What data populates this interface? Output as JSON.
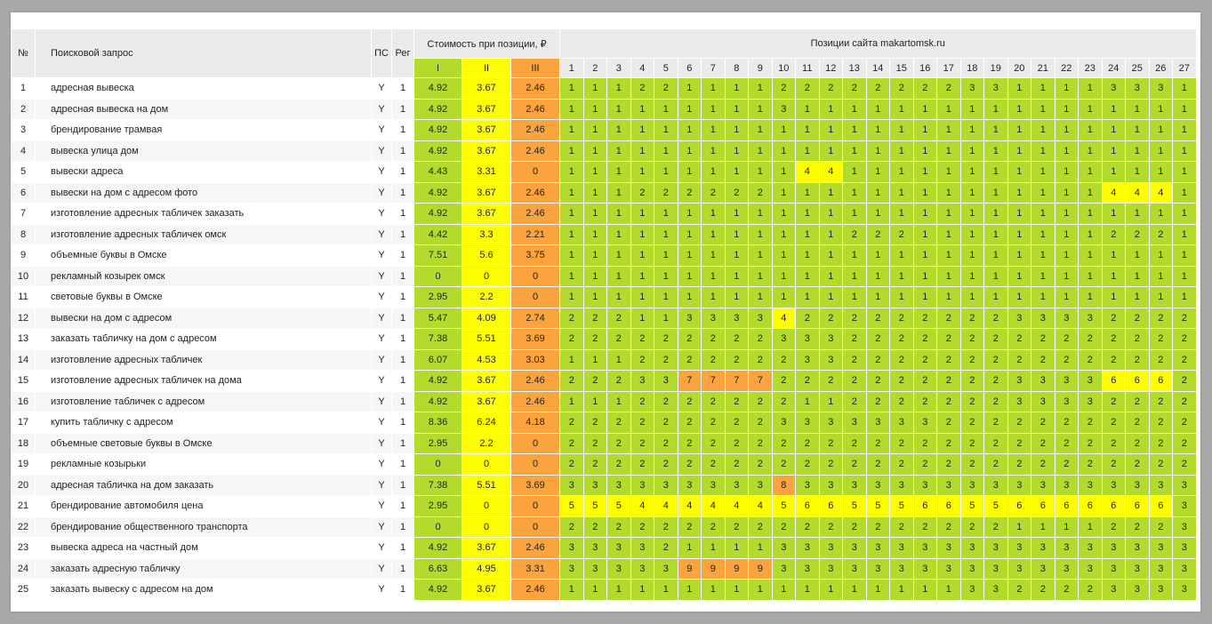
{
  "header": {
    "no": "№",
    "query": "Поисковой запрос",
    "ps": "ПС",
    "reg": "Рег",
    "cost_group": "Стоимость при позиции, ₽",
    "positions_group": "Позиции сайта makartomsk.ru",
    "tiers": [
      "I",
      "II",
      "III"
    ],
    "position_cols": [
      "1",
      "2",
      "3",
      "4",
      "5",
      "6",
      "7",
      "8",
      "9",
      "10",
      "11",
      "12",
      "13",
      "14",
      "15",
      "16",
      "17",
      "18",
      "19",
      "20",
      "21",
      "22",
      "23",
      "24",
      "25",
      "26",
      "27"
    ]
  },
  "colors": {
    "green": "#b2db2b",
    "yellow": "#fefe00",
    "orange": "#fba43d",
    "header_bg": "#ebebeb"
  },
  "rows": [
    {
      "n": "1",
      "q": "адресная вывеска",
      "ps": "Y",
      "reg": "1",
      "c": [
        "4.92",
        "3.67",
        "2.46"
      ],
      "p": [
        "1",
        "1",
        "1",
        "2",
        "2",
        "1",
        "1",
        "1",
        "1",
        "2",
        "2",
        "2",
        "2",
        "2",
        "2",
        "2",
        "2",
        "3",
        "3",
        "1",
        "1",
        "1",
        "1",
        "3",
        "3",
        "3",
        "1"
      ]
    },
    {
      "n": "2",
      "q": "адресная вывеска на дом",
      "ps": "Y",
      "reg": "1",
      "c": [
        "4.92",
        "3.67",
        "2.46"
      ],
      "p": [
        "1",
        "1",
        "1",
        "1",
        "1",
        "1",
        "1",
        "1",
        "1",
        "3",
        "1",
        "1",
        "1",
        "1",
        "1",
        "1",
        "1",
        "1",
        "1",
        "1",
        "1",
        "1",
        "1",
        "1",
        "1",
        "1",
        "1"
      ]
    },
    {
      "n": "3",
      "q": "брендирование трамвая",
      "ps": "Y",
      "reg": "1",
      "c": [
        "4.92",
        "3.67",
        "2.46"
      ],
      "p": [
        "1",
        "1",
        "1",
        "1",
        "1",
        "1",
        "1",
        "1",
        "1",
        "1",
        "1",
        "1",
        "1",
        "1",
        "1",
        "1",
        "1",
        "1",
        "1",
        "1",
        "1",
        "1",
        "1",
        "1",
        "1",
        "1",
        "1"
      ]
    },
    {
      "n": "4",
      "q": "вывеска улица дом",
      "ps": "Y",
      "reg": "1",
      "c": [
        "4.92",
        "3.67",
        "2.46"
      ],
      "p": [
        "1",
        "1",
        "1",
        "1",
        "1",
        "1",
        "1",
        "1",
        "1",
        "1",
        "1",
        "1",
        "1",
        "1",
        "1",
        "1",
        "1",
        "1",
        "1",
        "1",
        "1",
        "1",
        "1",
        "1",
        "1",
        "1",
        "1"
      ]
    },
    {
      "n": "5",
      "q": "вывески адреса",
      "ps": "Y",
      "reg": "1",
      "c": [
        "4.43",
        "3.31",
        "0"
      ],
      "p": [
        "1",
        "1",
        "1",
        "1",
        "1",
        "1",
        "1",
        "1",
        "1",
        "1",
        "4",
        "4",
        "1",
        "1",
        "1",
        "1",
        "1",
        "1",
        "1",
        "1",
        "1",
        "1",
        "1",
        "1",
        "1",
        "1",
        "1"
      ]
    },
    {
      "n": "6",
      "q": "вывески на дом с адресом фото",
      "ps": "Y",
      "reg": "1",
      "c": [
        "4.92",
        "3.67",
        "2.46"
      ],
      "p": [
        "1",
        "1",
        "1",
        "2",
        "2",
        "2",
        "2",
        "2",
        "2",
        "1",
        "1",
        "1",
        "1",
        "1",
        "1",
        "1",
        "1",
        "1",
        "1",
        "1",
        "1",
        "1",
        "1",
        "4",
        "4",
        "4",
        "1"
      ]
    },
    {
      "n": "7",
      "q": "изготовление адресных табличек заказать",
      "ps": "Y",
      "reg": "1",
      "c": [
        "4.92",
        "3.67",
        "2.46"
      ],
      "p": [
        "1",
        "1",
        "1",
        "1",
        "1",
        "1",
        "1",
        "1",
        "1",
        "1",
        "1",
        "1",
        "1",
        "1",
        "1",
        "1",
        "1",
        "1",
        "1",
        "1",
        "1",
        "1",
        "1",
        "1",
        "1",
        "1",
        "1"
      ]
    },
    {
      "n": "8",
      "q": "изготовление адресных табличек омск",
      "ps": "Y",
      "reg": "1",
      "c": [
        "4.42",
        "3.3",
        "2.21"
      ],
      "p": [
        "1",
        "1",
        "1",
        "1",
        "1",
        "1",
        "1",
        "1",
        "1",
        "1",
        "1",
        "1",
        "2",
        "2",
        "2",
        "1",
        "1",
        "1",
        "1",
        "1",
        "1",
        "1",
        "1",
        "2",
        "2",
        "2",
        "1"
      ]
    },
    {
      "n": "9",
      "q": "объемные буквы в Омске",
      "ps": "Y",
      "reg": "1",
      "c": [
        "7.51",
        "5.6",
        "3.75"
      ],
      "p": [
        "1",
        "1",
        "1",
        "1",
        "1",
        "1",
        "1",
        "1",
        "1",
        "1",
        "1",
        "1",
        "1",
        "1",
        "1",
        "1",
        "1",
        "1",
        "1",
        "1",
        "1",
        "1",
        "1",
        "1",
        "1",
        "1",
        "1"
      ]
    },
    {
      "n": "10",
      "q": "рекламный козырек омск",
      "ps": "Y",
      "reg": "1",
      "c": [
        "0",
        "0",
        "0"
      ],
      "p": [
        "1",
        "1",
        "1",
        "1",
        "1",
        "1",
        "1",
        "1",
        "1",
        "1",
        "1",
        "1",
        "1",
        "1",
        "1",
        "1",
        "1",
        "1",
        "1",
        "1",
        "1",
        "1",
        "1",
        "1",
        "1",
        "1",
        "1"
      ]
    },
    {
      "n": "11",
      "q": "световые буквы в Омске",
      "ps": "Y",
      "reg": "1",
      "c": [
        "2.95",
        "2.2",
        "0"
      ],
      "p": [
        "1",
        "1",
        "1",
        "1",
        "1",
        "1",
        "1",
        "1",
        "1",
        "1",
        "1",
        "1",
        "1",
        "1",
        "1",
        "1",
        "1",
        "1",
        "1",
        "1",
        "1",
        "1",
        "1",
        "1",
        "1",
        "1",
        "1"
      ]
    },
    {
      "n": "12",
      "q": "вывески на дом с адресом",
      "ps": "Y",
      "reg": "1",
      "c": [
        "5.47",
        "4.09",
        "2.74"
      ],
      "p": [
        "2",
        "2",
        "2",
        "1",
        "1",
        "3",
        "3",
        "3",
        "3",
        "4",
        "2",
        "2",
        "2",
        "2",
        "2",
        "2",
        "2",
        "2",
        "2",
        "3",
        "3",
        "3",
        "3",
        "2",
        "2",
        "2",
        "2"
      ]
    },
    {
      "n": "13",
      "q": "заказать табличку на дом с адресом",
      "ps": "Y",
      "reg": "1",
      "c": [
        "7.38",
        "5.51",
        "3.69"
      ],
      "p": [
        "2",
        "2",
        "2",
        "2",
        "2",
        "2",
        "2",
        "2",
        "2",
        "3",
        "3",
        "3",
        "2",
        "2",
        "2",
        "2",
        "2",
        "2",
        "2",
        "2",
        "2",
        "2",
        "2",
        "2",
        "2",
        "2",
        "2"
      ]
    },
    {
      "n": "14",
      "q": "изготовление адресных табличек",
      "ps": "Y",
      "reg": "1",
      "c": [
        "6.07",
        "4.53",
        "3.03"
      ],
      "p": [
        "1",
        "1",
        "1",
        "2",
        "2",
        "2",
        "2",
        "2",
        "2",
        "2",
        "3",
        "3",
        "2",
        "2",
        "2",
        "2",
        "2",
        "2",
        "2",
        "2",
        "2",
        "2",
        "2",
        "2",
        "2",
        "2",
        "2"
      ]
    },
    {
      "n": "15",
      "q": "изготовление адресных табличек на дома",
      "ps": "Y",
      "reg": "1",
      "c": [
        "4.92",
        "3.67",
        "2.46"
      ],
      "p": [
        "2",
        "2",
        "2",
        "3",
        "3",
        "7",
        "7",
        "7",
        "7",
        "2",
        "2",
        "2",
        "2",
        "2",
        "2",
        "2",
        "2",
        "2",
        "2",
        "3",
        "3",
        "3",
        "3",
        "6",
        "6",
        "6",
        "2"
      ]
    },
    {
      "n": "16",
      "q": "изготовление табличек с адресом",
      "ps": "Y",
      "reg": "1",
      "c": [
        "4.92",
        "3.67",
        "2.46"
      ],
      "p": [
        "1",
        "1",
        "1",
        "2",
        "2",
        "2",
        "2",
        "2",
        "2",
        "2",
        "1",
        "1",
        "2",
        "2",
        "2",
        "2",
        "2",
        "2",
        "2",
        "3",
        "3",
        "3",
        "3",
        "2",
        "2",
        "2",
        "2"
      ]
    },
    {
      "n": "17",
      "q": "купить табличку с адресом",
      "ps": "Y",
      "reg": "1",
      "c": [
        "8.36",
        "6.24",
        "4.18"
      ],
      "p": [
        "2",
        "2",
        "2",
        "2",
        "2",
        "2",
        "2",
        "2",
        "2",
        "3",
        "3",
        "3",
        "3",
        "3",
        "3",
        "3",
        "2",
        "2",
        "2",
        "2",
        "2",
        "2",
        "2",
        "2",
        "2",
        "2",
        "2"
      ]
    },
    {
      "n": "18",
      "q": "объемные световые буквы в Омске",
      "ps": "Y",
      "reg": "1",
      "c": [
        "2.95",
        "2.2",
        "0"
      ],
      "p": [
        "2",
        "2",
        "2",
        "2",
        "2",
        "2",
        "2",
        "2",
        "2",
        "2",
        "2",
        "2",
        "2",
        "2",
        "2",
        "2",
        "2",
        "2",
        "2",
        "2",
        "2",
        "2",
        "2",
        "2",
        "2",
        "2",
        "2"
      ]
    },
    {
      "n": "19",
      "q": "рекламные козырьки",
      "ps": "Y",
      "reg": "1",
      "c": [
        "0",
        "0",
        "0"
      ],
      "p": [
        "2",
        "2",
        "2",
        "2",
        "2",
        "2",
        "2",
        "2",
        "2",
        "2",
        "2",
        "2",
        "2",
        "2",
        "2",
        "2",
        "2",
        "2",
        "2",
        "2",
        "2",
        "2",
        "2",
        "2",
        "2",
        "2",
        "2"
      ]
    },
    {
      "n": "20",
      "q": "адресная табличка на дом заказать",
      "ps": "Y",
      "reg": "1",
      "c": [
        "7.38",
        "5.51",
        "3.69"
      ],
      "p": [
        "3",
        "3",
        "3",
        "3",
        "3",
        "3",
        "3",
        "3",
        "3",
        "8",
        "3",
        "3",
        "3",
        "3",
        "3",
        "3",
        "3",
        "3",
        "3",
        "3",
        "3",
        "3",
        "3",
        "3",
        "3",
        "3",
        "3"
      ]
    },
    {
      "n": "21",
      "q": "брендирование автомобиля цена",
      "ps": "Y",
      "reg": "1",
      "c": [
        "2.95",
        "0",
        "0"
      ],
      "p": [
        "5",
        "5",
        "5",
        "4",
        "4",
        "4",
        "4",
        "4",
        "4",
        "5",
        "6",
        "6",
        "5",
        "5",
        "5",
        "6",
        "6",
        "5",
        "5",
        "6",
        "6",
        "6",
        "6",
        "6",
        "6",
        "6",
        "3"
      ]
    },
    {
      "n": "22",
      "q": "брендирование общественного транспорта",
      "ps": "Y",
      "reg": "1",
      "c": [
        "0",
        "0",
        "0"
      ],
      "p": [
        "2",
        "2",
        "2",
        "2",
        "2",
        "2",
        "2",
        "2",
        "2",
        "2",
        "2",
        "2",
        "2",
        "2",
        "2",
        "2",
        "2",
        "2",
        "2",
        "1",
        "1",
        "1",
        "1",
        "2",
        "2",
        "2",
        "3"
      ]
    },
    {
      "n": "23",
      "q": "вывеска адреса на частный дом",
      "ps": "Y",
      "reg": "1",
      "c": [
        "4.92",
        "3.67",
        "2.46"
      ],
      "p": [
        "3",
        "3",
        "3",
        "3",
        "2",
        "1",
        "1",
        "1",
        "1",
        "3",
        "3",
        "3",
        "3",
        "3",
        "3",
        "3",
        "3",
        "3",
        "3",
        "3",
        "3",
        "3",
        "3",
        "3",
        "3",
        "3",
        "3"
      ]
    },
    {
      "n": "24",
      "q": "заказать адресную табличку",
      "ps": "Y",
      "reg": "1",
      "c": [
        "6.63",
        "4.95",
        "3.31"
      ],
      "p": [
        "3",
        "3",
        "3",
        "3",
        "3",
        "9",
        "9",
        "9",
        "9",
        "3",
        "3",
        "3",
        "3",
        "3",
        "3",
        "3",
        "3",
        "3",
        "3",
        "3",
        "3",
        "3",
        "3",
        "3",
        "3",
        "3",
        "3"
      ]
    },
    {
      "n": "25",
      "q": "заказать вывеску с адресом на дом",
      "ps": "Y",
      "reg": "1",
      "c": [
        "4.92",
        "3.67",
        "2.46"
      ],
      "p": [
        "1",
        "1",
        "1",
        "1",
        "1",
        "1",
        "1",
        "1",
        "1",
        "1",
        "1",
        "1",
        "1",
        "1",
        "1",
        "1",
        "1",
        "3",
        "3",
        "2",
        "2",
        "2",
        "2",
        "3",
        "3",
        "3",
        "3"
      ]
    }
  ]
}
